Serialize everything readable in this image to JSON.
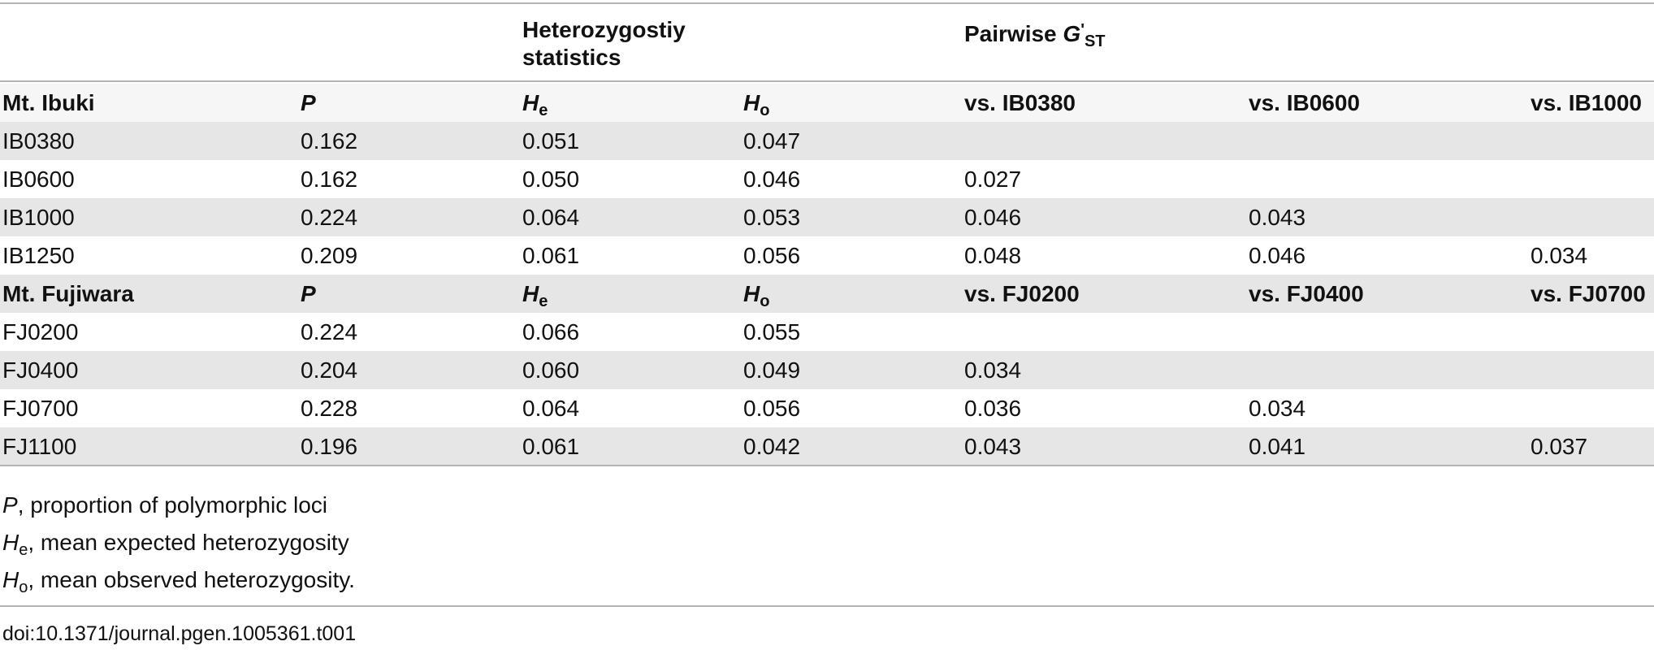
{
  "header": {
    "group1_line1": "Heterozygostiy",
    "group1_line2": "statistics",
    "group2_prefix": "Pairwise ",
    "group2_symbol": "G",
    "group2_prime": "'",
    "group2_sub": "ST"
  },
  "sections": [
    {
      "site": "Mt. Ibuki",
      "col_p": "P",
      "col_he": "H",
      "col_he_sub": "e",
      "col_ho": "H",
      "col_ho_sub": "o",
      "vs": [
        "vs. IB0380",
        "vs. IB0600",
        "vs. IB1000"
      ],
      "rows": [
        {
          "pop": "IB0380",
          "p": "0.162",
          "he": "0.051",
          "ho": "0.047",
          "g1": "",
          "g2": "",
          "g3": ""
        },
        {
          "pop": "IB0600",
          "p": "0.162",
          "he": "0.050",
          "ho": "0.046",
          "g1": "0.027",
          "g2": "",
          "g3": ""
        },
        {
          "pop": "IB1000",
          "p": "0.224",
          "he": "0.064",
          "ho": "0.053",
          "g1": "0.046",
          "g2": "0.043",
          "g3": ""
        },
        {
          "pop": "IB1250",
          "p": "0.209",
          "he": "0.061",
          "ho": "0.056",
          "g1": "0.048",
          "g2": "0.046",
          "g3": "0.034"
        }
      ]
    },
    {
      "site": "Mt. Fujiwara",
      "col_p": "P",
      "col_he": "H",
      "col_he_sub": "e",
      "col_ho": "H",
      "col_ho_sub": "o",
      "vs": [
        "vs. FJ0200",
        "vs. FJ0400",
        "vs. FJ0700"
      ],
      "rows": [
        {
          "pop": "FJ0200",
          "p": "0.224",
          "he": "0.066",
          "ho": "0.055",
          "g1": "",
          "g2": "",
          "g3": ""
        },
        {
          "pop": "FJ0400",
          "p": "0.204",
          "he": "0.060",
          "ho": "0.049",
          "g1": "0.034",
          "g2": "",
          "g3": ""
        },
        {
          "pop": "FJ0700",
          "p": "0.228",
          "he": "0.064",
          "ho": "0.056",
          "g1": "0.036",
          "g2": "0.034",
          "g3": ""
        },
        {
          "pop": "FJ1100",
          "p": "0.196",
          "he": "0.061",
          "ho": "0.042",
          "g1": "0.043",
          "g2": "0.041",
          "g3": "0.037"
        }
      ]
    }
  ],
  "footnotes": [
    {
      "symbol": "P",
      "sub": "",
      "text": ", proportion of polymorphic loci"
    },
    {
      "symbol": "H",
      "sub": "e",
      "text": ", mean expected heterozygosity"
    },
    {
      "symbol": "H",
      "sub": "o",
      "text": ", mean observed heterozygosity."
    }
  ],
  "doi": "doi:10.1371/journal.pgen.1005361.t001"
}
